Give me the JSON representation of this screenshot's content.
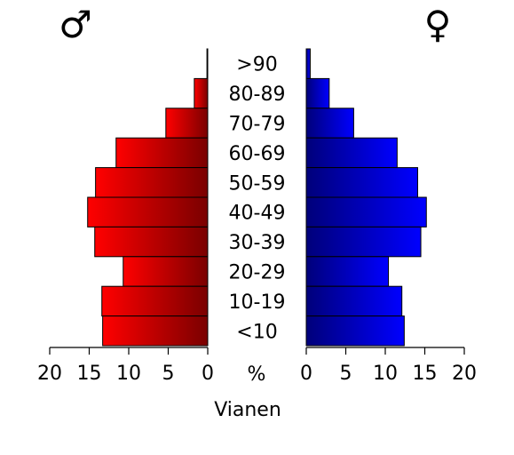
{
  "chart_data": {
    "type": "bar",
    "orientation": "horizontal",
    "layout": "population-pyramid",
    "title": "Vianen",
    "unit_label": "%",
    "categories": [
      ">90",
      "80-89",
      "70-79",
      "60-69",
      "50-59",
      "40-49",
      "30-39",
      "20-29",
      "10-19",
      "<10"
    ],
    "series": [
      {
        "name": "♂",
        "side": "left",
        "color_light": "#ff0000",
        "color_dark": "#7a0000",
        "values": [
          0.1,
          1.7,
          5.3,
          11.6,
          14.2,
          15.2,
          14.3,
          10.7,
          13.4,
          13.3
        ]
      },
      {
        "name": "♀",
        "side": "right",
        "color_light": "#0000ff",
        "color_dark": "#00007a",
        "values": [
          0.5,
          2.9,
          6.0,
          11.5,
          14.1,
          15.2,
          14.5,
          10.4,
          12.1,
          12.4
        ]
      }
    ],
    "xlim": [
      0,
      20
    ],
    "ticks": [
      "20",
      "15",
      "10",
      "5",
      "0",
      "0",
      "5",
      "10",
      "15",
      "20"
    ],
    "grid": false,
    "legend": "none"
  }
}
